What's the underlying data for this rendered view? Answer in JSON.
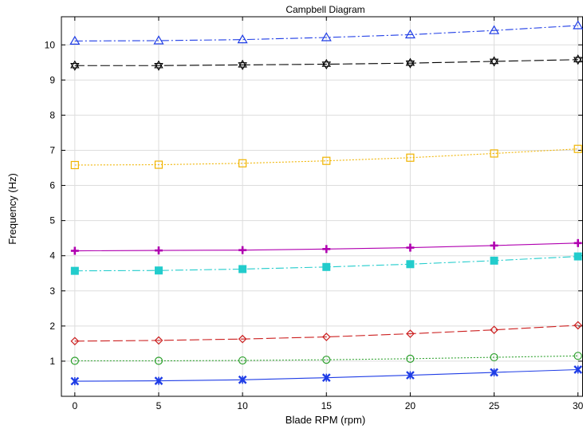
{
  "chart_data": {
    "type": "line",
    "title": "Campbell Diagram",
    "xlabel": "Blade RPM (rpm)",
    "ylabel": "Frequency (Hz)",
    "xlim": [
      -0.8,
      30.3
    ],
    "ylim": [
      0,
      10.8
    ],
    "x_ticks": [
      0,
      5,
      10,
      15,
      20,
      25,
      30
    ],
    "y_ticks": [
      1,
      2,
      3,
      4,
      5,
      6,
      7,
      8,
      9,
      10
    ],
    "grid": true,
    "x": [
      0,
      5,
      10,
      15,
      20,
      25,
      30
    ],
    "series": [
      {
        "color": "#1f3de6",
        "marker": "x-star",
        "dash": "",
        "values": [
          0.43,
          0.44,
          0.47,
          0.53,
          0.6,
          0.68,
          0.76
        ]
      },
      {
        "color": "#2ca02c",
        "marker": "circle",
        "dash": "2 2",
        "values": [
          1.01,
          1.01,
          1.02,
          1.04,
          1.07,
          1.11,
          1.15
        ]
      },
      {
        "color": "#cc2020",
        "marker": "diamond",
        "dash": "12 4",
        "values": [
          1.57,
          1.59,
          1.63,
          1.69,
          1.78,
          1.89,
          2.02
        ]
      },
      {
        "color": "#22cccc",
        "marker": "filled-square",
        "dash": "10 3 2 3",
        "values": [
          3.57,
          3.58,
          3.62,
          3.68,
          3.76,
          3.86,
          3.98
        ]
      },
      {
        "color": "#b000b0",
        "marker": "plus",
        "dash": "",
        "values": [
          4.14,
          4.15,
          4.16,
          4.19,
          4.23,
          4.29,
          4.36
        ]
      },
      {
        "color": "#f0b400",
        "marker": "square",
        "dash": "2 2",
        "values": [
          6.58,
          6.59,
          6.63,
          6.7,
          6.79,
          6.91,
          7.04
        ]
      },
      {
        "color": "#000000",
        "marker": "star6",
        "dash": "12 4",
        "values": [
          9.41,
          9.41,
          9.43,
          9.45,
          9.48,
          9.53,
          9.58
        ]
      },
      {
        "color": "#1f3de6",
        "marker": "triangle",
        "dash": "10 3 2 3",
        "values": [
          10.11,
          10.12,
          10.15,
          10.21,
          10.29,
          10.41,
          10.55
        ]
      }
    ]
  }
}
